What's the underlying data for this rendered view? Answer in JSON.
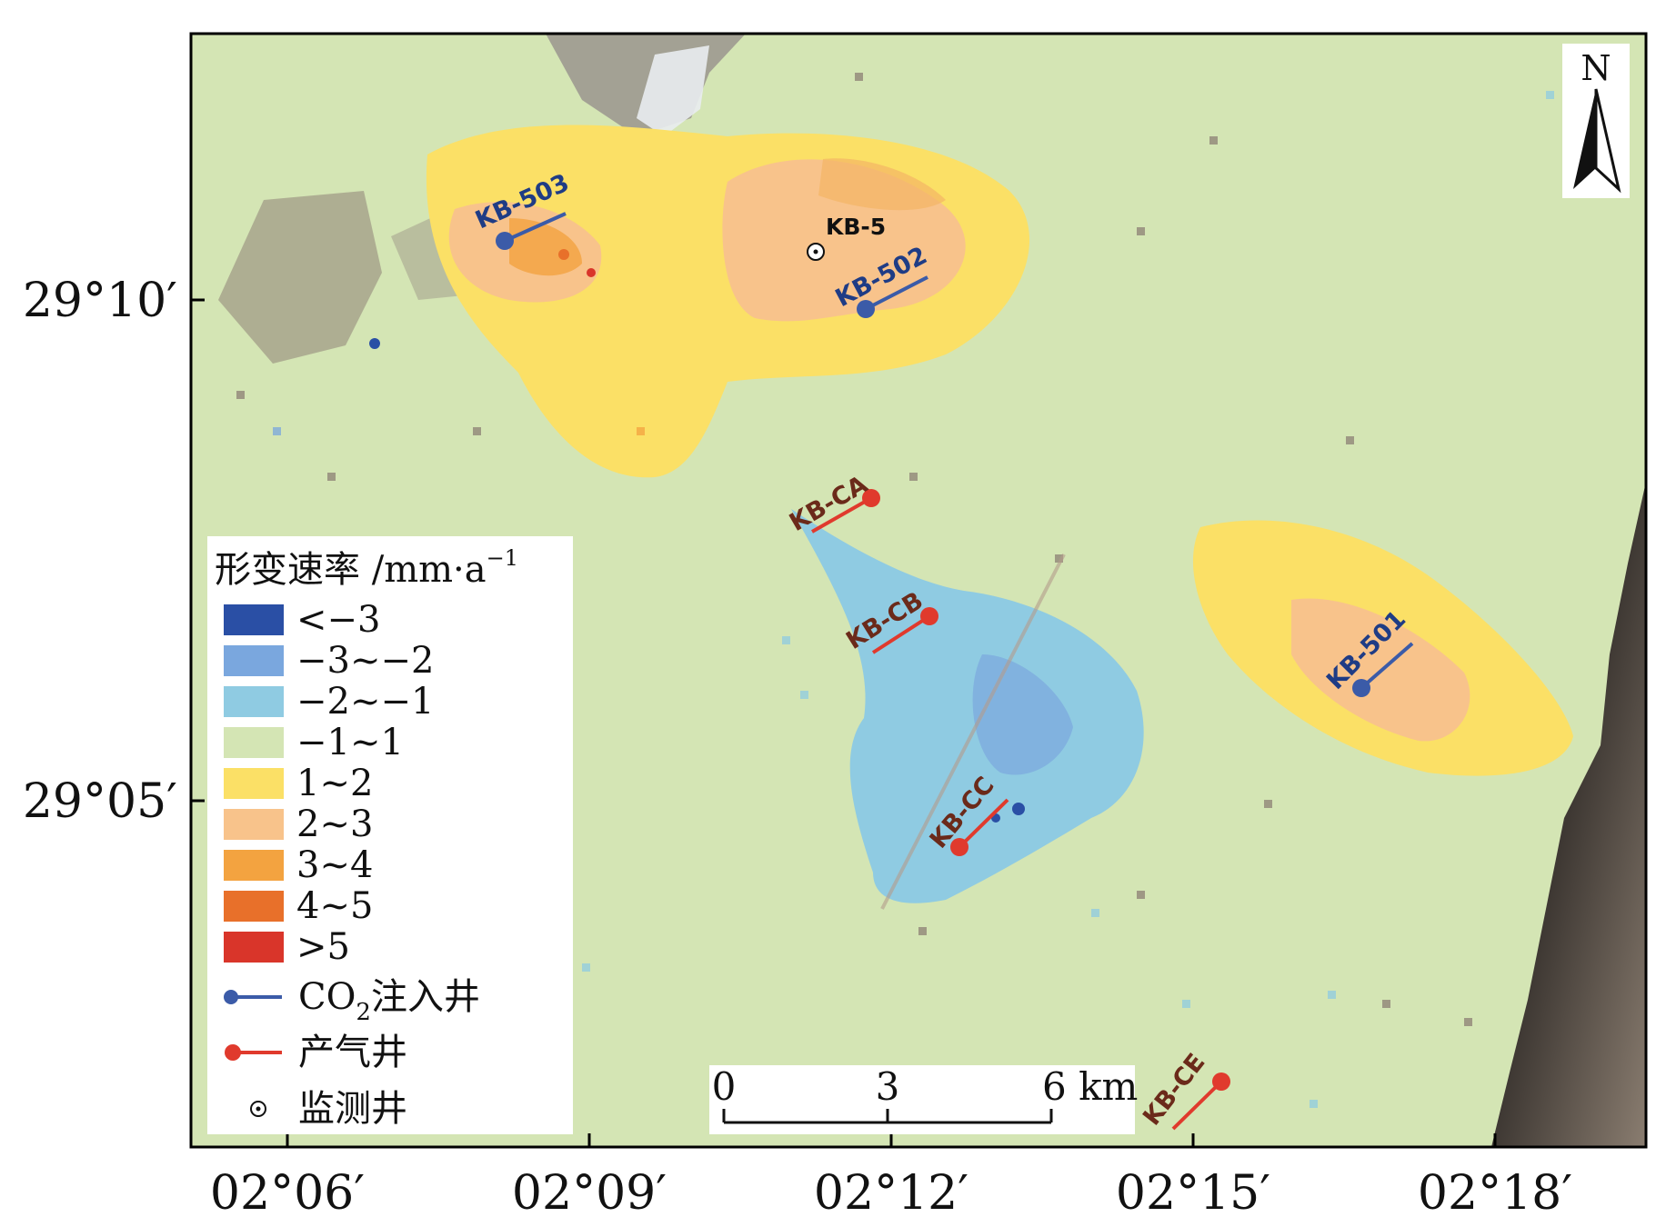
{
  "north_arrow": {
    "label": "N"
  },
  "axes": {
    "y_ticks": [
      "29°10′",
      "29°05′"
    ],
    "x_ticks": [
      "02°06′",
      "02°09′",
      "02°12′",
      "02°15′",
      "02°18′"
    ]
  },
  "legend": {
    "title": "形变速率 /mm·a",
    "title_sup": "−1",
    "classes": [
      {
        "label": "<−3",
        "color": "#2a4fa5"
      },
      {
        "label": "−3~−2",
        "color": "#7aa7de"
      },
      {
        "label": "−2~−1",
        "color": "#8fcbe2"
      },
      {
        "label": "−1~1",
        "color": "#d4e5b4"
      },
      {
        "label": "1~2",
        "color": "#fbe066"
      },
      {
        "label": "2~3",
        "color": "#f8c38b"
      },
      {
        "label": "3~4",
        "color": "#f3a340"
      },
      {
        "label": "4~5",
        "color": "#e8702a"
      },
      {
        "label": ">5",
        "color": "#d9352a"
      }
    ],
    "co2_well": {
      "label_pre": "CO",
      "label_sub": "2",
      "label_post": "注入井",
      "color": "#3b5ba8"
    },
    "gas_well": {
      "label": "产气井",
      "color": "#e03a2d"
    },
    "monitor_well": {
      "label": "监测井"
    }
  },
  "scale_bar": {
    "labels": [
      "0",
      "3",
      "6 km"
    ]
  },
  "wells": {
    "kb503": "KB-503",
    "kb5": "KB-5",
    "kb502": "KB-502",
    "kbca": "KB-CA",
    "kbcb": "KB-CB",
    "kbcc": "KB-CC",
    "kbce": "KB-CE",
    "kb501": "KB-501"
  }
}
